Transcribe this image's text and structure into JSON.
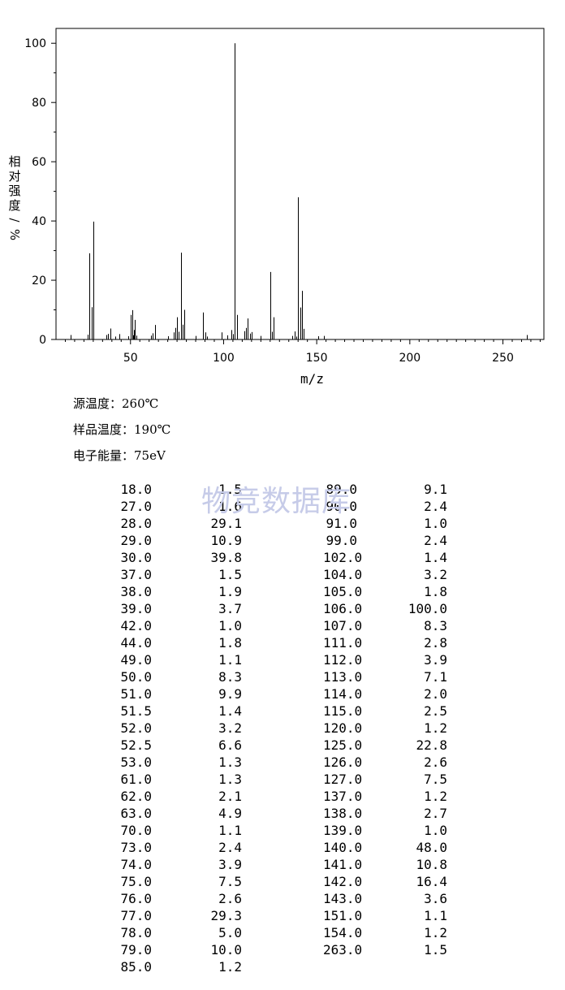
{
  "chart_data": {
    "type": "bar",
    "xlabel": "m/z",
    "ylabel": "相对强度/%",
    "xlim": [
      10,
      272
    ],
    "ylim": [
      0,
      105
    ],
    "x_ticks": [
      50,
      100,
      150,
      200,
      250
    ],
    "y_ticks": [
      0,
      20,
      40,
      60,
      80,
      100
    ],
    "grid": false,
    "peaks": [
      {
        "mz": "18.0",
        "i": "1.5"
      },
      {
        "mz": "27.0",
        "i": "1.6"
      },
      {
        "mz": "28.0",
        "i": "29.1"
      },
      {
        "mz": "29.0",
        "i": "10.9"
      },
      {
        "mz": "30.0",
        "i": "39.8"
      },
      {
        "mz": "37.0",
        "i": "1.5"
      },
      {
        "mz": "38.0",
        "i": "1.9"
      },
      {
        "mz": "39.0",
        "i": "3.7"
      },
      {
        "mz": "42.0",
        "i": "1.0"
      },
      {
        "mz": "44.0",
        "i": "1.8"
      },
      {
        "mz": "49.0",
        "i": "1.1"
      },
      {
        "mz": "50.0",
        "i": "8.3"
      },
      {
        "mz": "51.0",
        "i": "9.9"
      },
      {
        "mz": "51.5",
        "i": "1.4"
      },
      {
        "mz": "52.0",
        "i": "3.2"
      },
      {
        "mz": "52.5",
        "i": "6.6"
      },
      {
        "mz": "53.0",
        "i": "1.3"
      },
      {
        "mz": "61.0",
        "i": "1.3"
      },
      {
        "mz": "62.0",
        "i": "2.1"
      },
      {
        "mz": "63.0",
        "i": "4.9"
      },
      {
        "mz": "70.0",
        "i": "1.1"
      },
      {
        "mz": "73.0",
        "i": "2.4"
      },
      {
        "mz": "74.0",
        "i": "3.9"
      },
      {
        "mz": "75.0",
        "i": "7.5"
      },
      {
        "mz": "76.0",
        "i": "2.6"
      },
      {
        "mz": "77.0",
        "i": "29.3"
      },
      {
        "mz": "78.0",
        "i": "5.0"
      },
      {
        "mz": "79.0",
        "i": "10.0"
      },
      {
        "mz": "85.0",
        "i": "1.2"
      },
      {
        "mz": "89.0",
        "i": "9.1"
      },
      {
        "mz": "90.0",
        "i": "2.4"
      },
      {
        "mz": "91.0",
        "i": "1.0"
      },
      {
        "mz": "99.0",
        "i": "2.4"
      },
      {
        "mz": "102.0",
        "i": "1.4"
      },
      {
        "mz": "104.0",
        "i": "3.2"
      },
      {
        "mz": "105.0",
        "i": "1.8"
      },
      {
        "mz": "106.0",
        "i": "100.0"
      },
      {
        "mz": "107.0",
        "i": "8.3"
      },
      {
        "mz": "111.0",
        "i": "2.8"
      },
      {
        "mz": "112.0",
        "i": "3.9"
      },
      {
        "mz": "113.0",
        "i": "7.1"
      },
      {
        "mz": "114.0",
        "i": "2.0"
      },
      {
        "mz": "115.0",
        "i": "2.5"
      },
      {
        "mz": "120.0",
        "i": "1.2"
      },
      {
        "mz": "125.0",
        "i": "22.8"
      },
      {
        "mz": "126.0",
        "i": "2.6"
      },
      {
        "mz": "127.0",
        "i": "7.5"
      },
      {
        "mz": "137.0",
        "i": "1.2"
      },
      {
        "mz": "138.0",
        "i": "2.7"
      },
      {
        "mz": "139.0",
        "i": "1.0"
      },
      {
        "mz": "140.0",
        "i": "48.0"
      },
      {
        "mz": "141.0",
        "i": "10.8"
      },
      {
        "mz": "142.0",
        "i": "16.4"
      },
      {
        "mz": "143.0",
        "i": "3.6"
      },
      {
        "mz": "151.0",
        "i": "1.1"
      },
      {
        "mz": "154.0",
        "i": "1.2"
      },
      {
        "mz": "263.0",
        "i": "1.5"
      }
    ]
  },
  "conditions": {
    "source_temp": "源温度：260℃",
    "sample_temp": "样品温度：190℃",
    "electron_energy": "电子能量：75eV"
  },
  "watermark": "物竞数据库"
}
